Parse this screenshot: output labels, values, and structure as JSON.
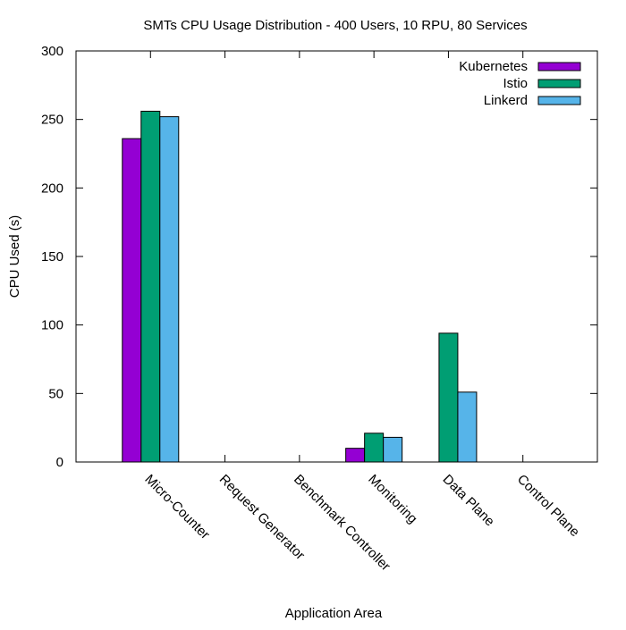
{
  "chart_data": {
    "type": "bar",
    "title": "SMTs CPU Usage Distribution - 400 Users, 10 RPU, 80 Services",
    "xlabel": "Application Area",
    "ylabel": "CPU Used (s)",
    "ylim": [
      0,
      300
    ],
    "yticks": [
      0,
      50,
      100,
      150,
      200,
      250,
      300
    ],
    "categories": [
      "Micro-Counter",
      "Request Generator",
      "Benchmark Controller",
      "Monitoring",
      "Data Plane",
      "Control Plane"
    ],
    "series": [
      {
        "name": "Kubernetes",
        "color": "#9400d3",
        "values": [
          236,
          0,
          0,
          10,
          0,
          0
        ]
      },
      {
        "name": "Istio",
        "color": "#009e73",
        "values": [
          256,
          0,
          0,
          21,
          94,
          0
        ]
      },
      {
        "name": "Linkerd",
        "color": "#56b4e9",
        "values": [
          252,
          0,
          0,
          18,
          51,
          0
        ]
      }
    ],
    "legend_position": "top-right",
    "grid": false
  }
}
